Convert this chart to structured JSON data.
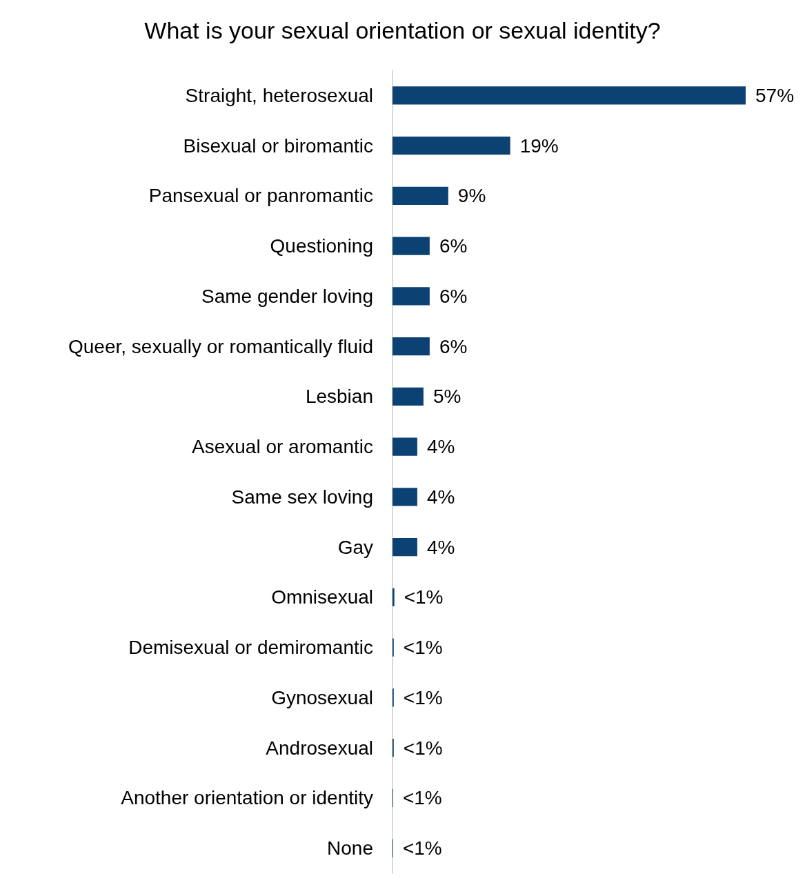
{
  "chart_data": {
    "type": "bar",
    "orientation": "horizontal",
    "title": "What is your sexual orientation or sexual identity?",
    "categories": [
      "Straight, heterosexual",
      "Bisexual or biromantic",
      "Pansexual or panromantic",
      "Questioning",
      "Same gender loving",
      "Queer, sexually or romantically fluid",
      "Lesbian",
      "Asexual or aromantic",
      "Same sex loving",
      "Gay",
      "Omnisexual",
      "Demisexual or demiromantic",
      "Gynosexual",
      "Androsexual",
      "Another orientation or identity",
      "None"
    ],
    "values": [
      57,
      19,
      9,
      6,
      6,
      6,
      5,
      4,
      4,
      4,
      0.3,
      0.2,
      0.2,
      0.2,
      0.1,
      0.1
    ],
    "value_labels": [
      "57%",
      "19%",
      "9%",
      "6%",
      "6%",
      "6%",
      "5%",
      "4%",
      "4%",
      "4%",
      "<1%",
      "<1%",
      "<1%",
      "<1%",
      "<1%",
      "<1%"
    ],
    "color": "#0b4173",
    "xlim": [
      0,
      57
    ],
    "tick_labels": "y"
  }
}
